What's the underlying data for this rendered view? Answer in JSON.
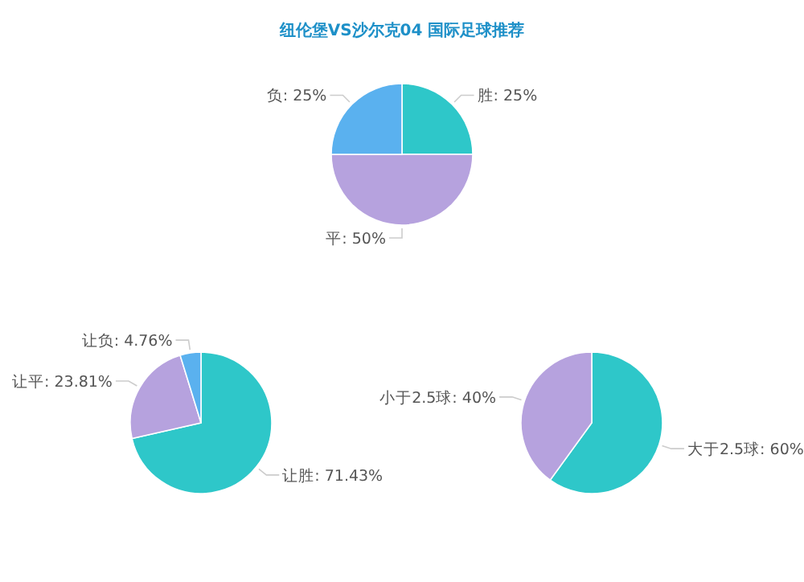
{
  "chart_data": [
    {
      "type": "pie",
      "title": "纽伦堡VS沙尔克04 国际足球推荐",
      "categories": [
        "胜",
        "平",
        "负"
      ],
      "values": [
        25,
        50,
        25
      ],
      "value_labels": [
        "25%",
        "50%",
        "25%"
      ],
      "colors": [
        "#2ec7c9",
        "#b6a2de",
        "#5ab1ef"
      ]
    },
    {
      "type": "pie",
      "categories": [
        "让胜",
        "让平",
        "让负"
      ],
      "values": [
        71.43,
        23.81,
        4.76
      ],
      "value_labels": [
        "71.43%",
        "23.81%",
        "4.76%"
      ],
      "colors": [
        "#2ec7c9",
        "#b6a2de",
        "#5ab1ef"
      ]
    },
    {
      "type": "pie",
      "categories": [
        "大于2.5球",
        "小于2.5球"
      ],
      "values": [
        60,
        40
      ],
      "value_labels": [
        "60%",
        "40%"
      ],
      "colors": [
        "#2ec7c9",
        "#b6a2de"
      ]
    }
  ]
}
